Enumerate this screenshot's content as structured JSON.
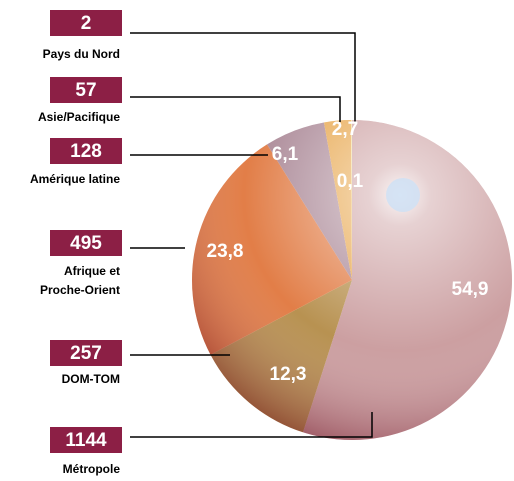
{
  "chart_data": {
    "type": "pie",
    "categories": [
      "Métropole",
      "DOM-TOM",
      "Afrique et\nProche-Orient",
      "Amérique latine",
      "Asie/Pacifique",
      "Pays du Nord"
    ],
    "values": [
      54.9,
      12.3,
      23.8,
      6.1,
      2.7,
      0.1
    ],
    "value_labels": [
      "54,9",
      "12,3",
      "23,8",
      "6,1",
      "2,7",
      "0,1"
    ],
    "counts": [
      1144,
      257,
      495,
      128,
      57,
      2
    ],
    "colors": [
      "#c99a9c",
      "#b48c48",
      "#e0773e",
      "#a78392",
      "#e6a142",
      "#f1dd97"
    ]
  }
}
